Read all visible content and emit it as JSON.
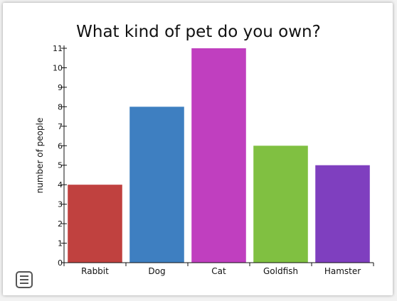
{
  "chart_data": {
    "type": "bar",
    "title": "What kind of pet do you own?",
    "ylabel": "number of people",
    "xlabel": "",
    "categories": [
      "Rabbit",
      "Dog",
      "Cat",
      "Goldfish",
      "Hamster"
    ],
    "values": [
      4,
      8,
      11,
      6,
      5
    ],
    "colors": [
      "#c0413f",
      "#3e7fc1",
      "#c03fbf",
      "#80c041",
      "#7f3fbf"
    ],
    "ylim": [
      0,
      11
    ],
    "yticks": [
      "0",
      "1",
      "2",
      "3",
      "4",
      "5",
      "6",
      "7",
      "8",
      "9",
      "10",
      "11"
    ],
    "grid": false
  },
  "menu": {
    "icon": "hamburger-menu-icon"
  }
}
